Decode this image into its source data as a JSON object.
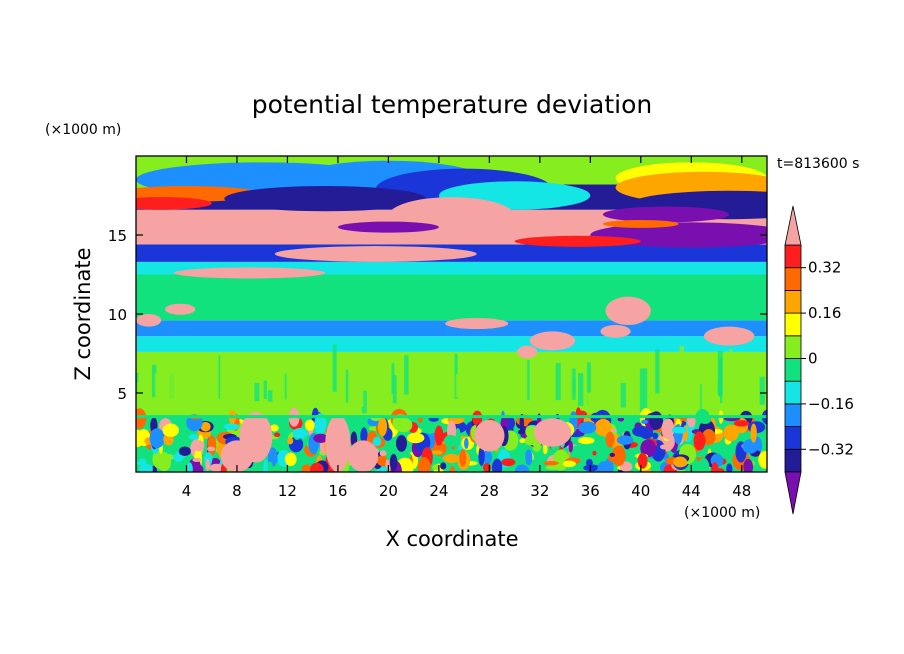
{
  "chart_data": {
    "type": "heatmap",
    "title": "potential temperature deviation",
    "xlabel": "X coordinate",
    "ylabel": "Z coordinate",
    "x_unit": "(×1000 m)",
    "y_unit": "(×1000 m)",
    "time_label": "t=813600 s",
    "xlim": [
      0,
      50
    ],
    "ylim": [
      0,
      20
    ],
    "x_ticks": [
      4,
      8,
      12,
      16,
      20,
      24,
      28,
      32,
      36,
      40,
      44,
      48
    ],
    "y_ticks": [
      5,
      10,
      15
    ],
    "colorbar": {
      "levels": [
        -0.4,
        -0.32,
        -0.24,
        -0.16,
        -0.08,
        0,
        0.08,
        0.16,
        0.24,
        0.32,
        0.4
      ],
      "tick_labels": [
        "0.32",
        "0.16",
        "0",
        "−0.16",
        "−0.32"
      ],
      "tick_values": [
        0.32,
        0.16,
        0,
        -0.16,
        -0.32
      ],
      "colors_low_to_high": [
        "#7a0fb0",
        "#241b96",
        "#1a36d8",
        "#1e8fff",
        "#14e5e5",
        "#11e27e",
        "#86ee1e",
        "#ffff00",
        "#ffa500",
        "#ff6a00",
        "#ff1e1e",
        "#f5a3a3"
      ]
    },
    "bands": [
      {
        "z": [
          0,
          3.6
        ],
        "desc": "turbulent boundary layer",
        "base": "#11e27e"
      },
      {
        "z": [
          3.6,
          7.6
        ],
        "base": "#86ee1e"
      },
      {
        "z": [
          7.6,
          8.6
        ],
        "base": "#14e5e5"
      },
      {
        "z": [
          8.6,
          9.6
        ],
        "base": "#1e8fff"
      },
      {
        "z": [
          9.6,
          12.5
        ],
        "base": "#11e27e"
      },
      {
        "z": [
          12.5,
          13.3
        ],
        "base": "#14e5e5"
      },
      {
        "z": [
          13.3,
          14.4
        ],
        "base": "#1a36d8"
      },
      {
        "z": [
          14.4,
          16.6
        ],
        "base": "#f5a3a3"
      },
      {
        "z": [
          16.6,
          18.2
        ],
        "base": "#241b96"
      },
      {
        "z": [
          18.2,
          20
        ],
        "base": "#86ee1e"
      }
    ]
  }
}
